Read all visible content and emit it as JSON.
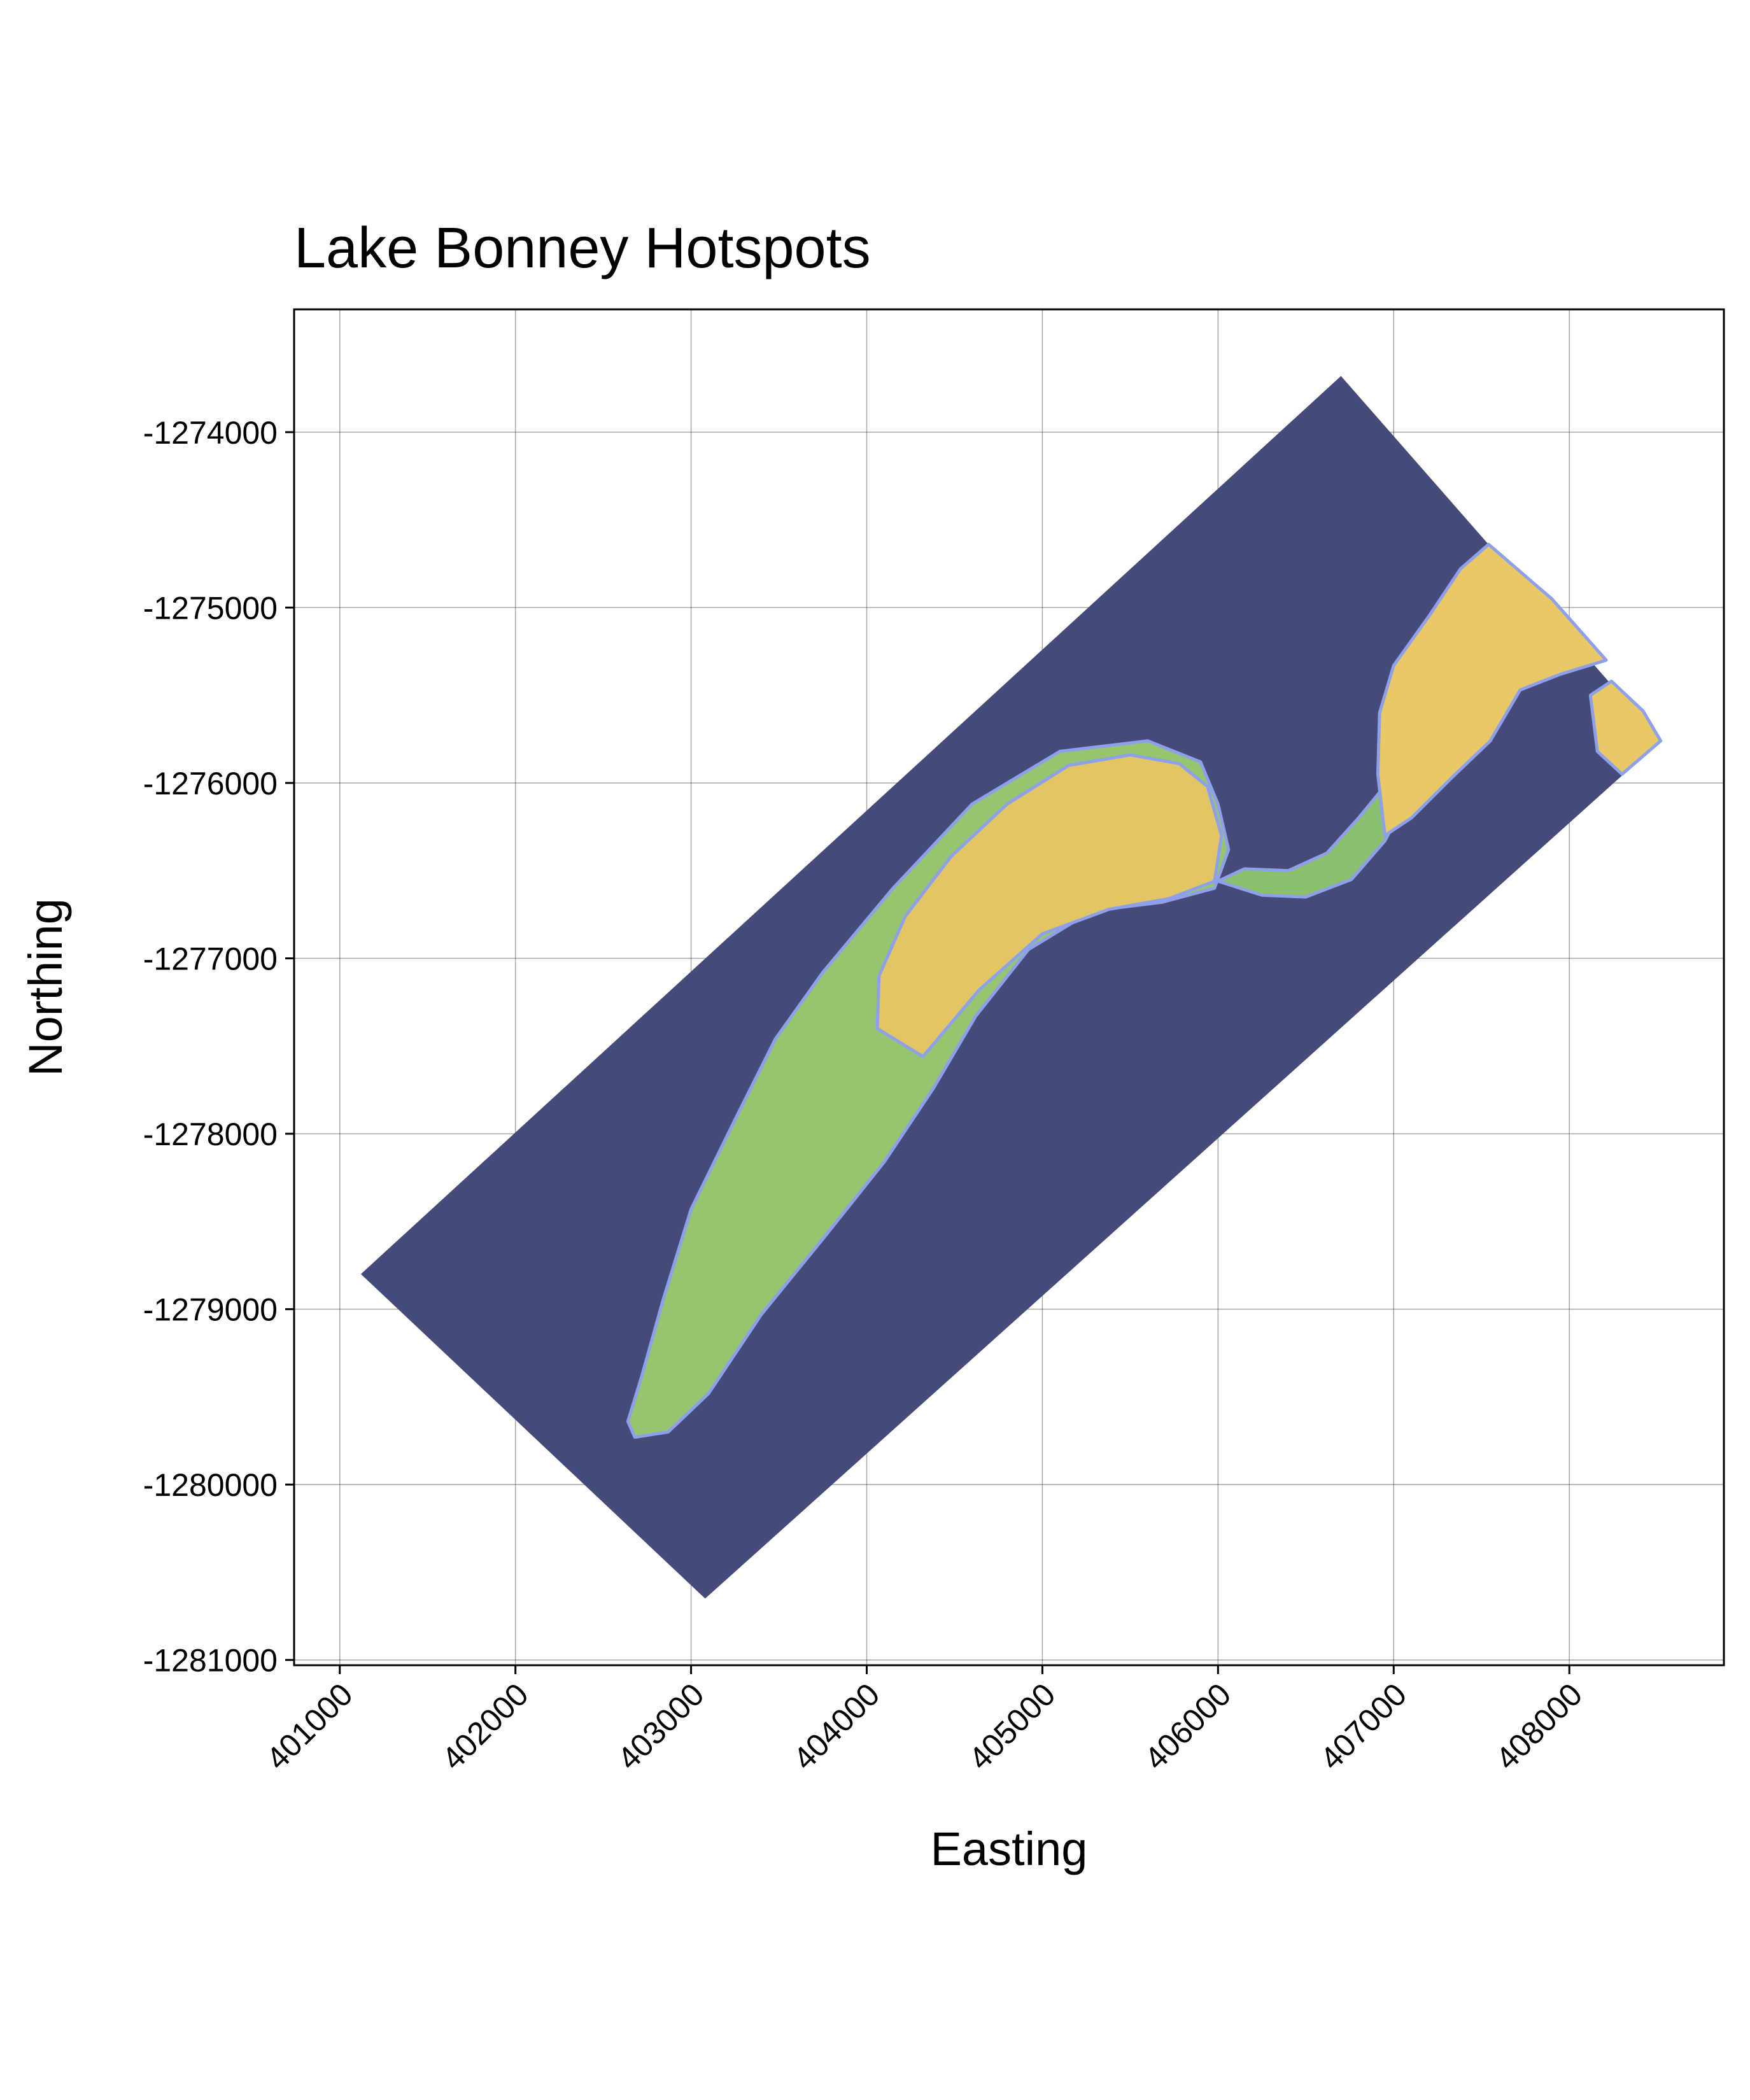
{
  "chart_data": {
    "type": "heatmap",
    "title": "Lake Bonney Hotspots",
    "xlabel": "Easting",
    "ylabel": "Northing",
    "xlim": [
      400740,
      408880
    ],
    "ylim": [
      -1281030,
      -1273300
    ],
    "x_ticks": [
      401000,
      402000,
      403000,
      404000,
      405000,
      406000,
      407000,
      408000
    ],
    "y_ticks": [
      -1274000,
      -1275000,
      -1276000,
      -1277000,
      -1278000,
      -1279000,
      -1280000,
      -1281000
    ],
    "x_tick_labels": [
      "401000",
      "402000",
      "403000",
      "404000",
      "405000",
      "406000",
      "407000",
      "408000"
    ],
    "y_tick_labels": [
      "-1274000",
      "-1275000",
      "-1276000",
      "-1277000",
      "-1278000",
      "-1279000",
      "-1280000",
      "-1281000"
    ],
    "grid": true,
    "colormap": [
      "#454a78",
      "#7e8ee6",
      "#8fc46e",
      "#e9c965"
    ],
    "raster_footprint": [
      [
        401120,
        -1278800
      ],
      [
        406700,
        -1273680
      ],
      [
        408520,
        -1275760
      ],
      [
        403080,
        -1280650
      ]
    ],
    "regions": [
      {
        "class": "low",
        "color": "#454a78",
        "polygon": [
          [
            401120,
            -1278800
          ],
          [
            406700,
            -1273680
          ],
          [
            408520,
            -1275760
          ],
          [
            403080,
            -1280650
          ]
        ]
      },
      {
        "class": "lake-west-lobe",
        "color": "#97c56f",
        "polygon": [
          [
            402680,
            -1279730
          ],
          [
            402870,
            -1279700
          ],
          [
            403100,
            -1279480
          ],
          [
            403400,
            -1279030
          ],
          [
            403750,
            -1278600
          ],
          [
            404100,
            -1278160
          ],
          [
            404380,
            -1277740
          ],
          [
            404620,
            -1277330
          ],
          [
            404920,
            -1276950
          ],
          [
            405280,
            -1276730
          ],
          [
            405680,
            -1276680
          ],
          [
            405980,
            -1276600
          ],
          [
            406060,
            -1276380
          ],
          [
            406000,
            -1276120
          ],
          [
            405900,
            -1275880
          ],
          [
            405600,
            -1275760
          ],
          [
            405100,
            -1275820
          ],
          [
            404600,
            -1276120
          ],
          [
            404150,
            -1276600
          ],
          [
            403750,
            -1277080
          ],
          [
            403480,
            -1277460
          ],
          [
            403250,
            -1277920
          ],
          [
            403000,
            -1278430
          ],
          [
            402840,
            -1278950
          ],
          [
            402720,
            -1279380
          ],
          [
            402640,
            -1279640
          ]
        ]
      },
      {
        "class": "lake-west-high",
        "color": "#e2c665",
        "polygon": [
          [
            404320,
            -1277560
          ],
          [
            404640,
            -1277180
          ],
          [
            405000,
            -1276860
          ],
          [
            405380,
            -1276720
          ],
          [
            405720,
            -1276660
          ],
          [
            405980,
            -1276560
          ],
          [
            406020,
            -1276300
          ],
          [
            405940,
            -1276020
          ],
          [
            405780,
            -1275890
          ],
          [
            405500,
            -1275840
          ],
          [
            405150,
            -1275900
          ],
          [
            404800,
            -1276120
          ],
          [
            404480,
            -1276420
          ],
          [
            404220,
            -1276760
          ],
          [
            404070,
            -1277100
          ],
          [
            404060,
            -1277400
          ]
        ]
      },
      {
        "class": "channel",
        "color": "#8ac06e",
        "polygon": [
          [
            406000,
            -1276560
          ],
          [
            406250,
            -1276640
          ],
          [
            406500,
            -1276650
          ],
          [
            406760,
            -1276550
          ],
          [
            406950,
            -1276330
          ],
          [
            407080,
            -1276080
          ],
          [
            406980,
            -1275980
          ],
          [
            406800,
            -1276200
          ],
          [
            406620,
            -1276400
          ],
          [
            406400,
            -1276500
          ],
          [
            406150,
            -1276490
          ]
        ]
      },
      {
        "class": "lake-east",
        "color": "#e9c965",
        "polygon": [
          [
            406950,
            -1276300
          ],
          [
            407100,
            -1276200
          ],
          [
            407320,
            -1275980
          ],
          [
            407550,
            -1275760
          ],
          [
            407720,
            -1275470
          ],
          [
            407950,
            -1275380
          ],
          [
            408210,
            -1275300
          ],
          [
            407900,
            -1274950
          ],
          [
            407540,
            -1274640
          ],
          [
            407380,
            -1274780
          ],
          [
            407200,
            -1275050
          ],
          [
            407000,
            -1275330
          ],
          [
            406920,
            -1275600
          ],
          [
            406910,
            -1275950
          ]
        ]
      },
      {
        "class": "lake-east-tip",
        "color": "#e9c965",
        "polygon": [
          [
            408120,
            -1275500
          ],
          [
            408240,
            -1275420
          ],
          [
            408420,
            -1275590
          ],
          [
            408520,
            -1275760
          ],
          [
            408300,
            -1275950
          ],
          [
            408160,
            -1275820
          ]
        ]
      }
    ]
  }
}
